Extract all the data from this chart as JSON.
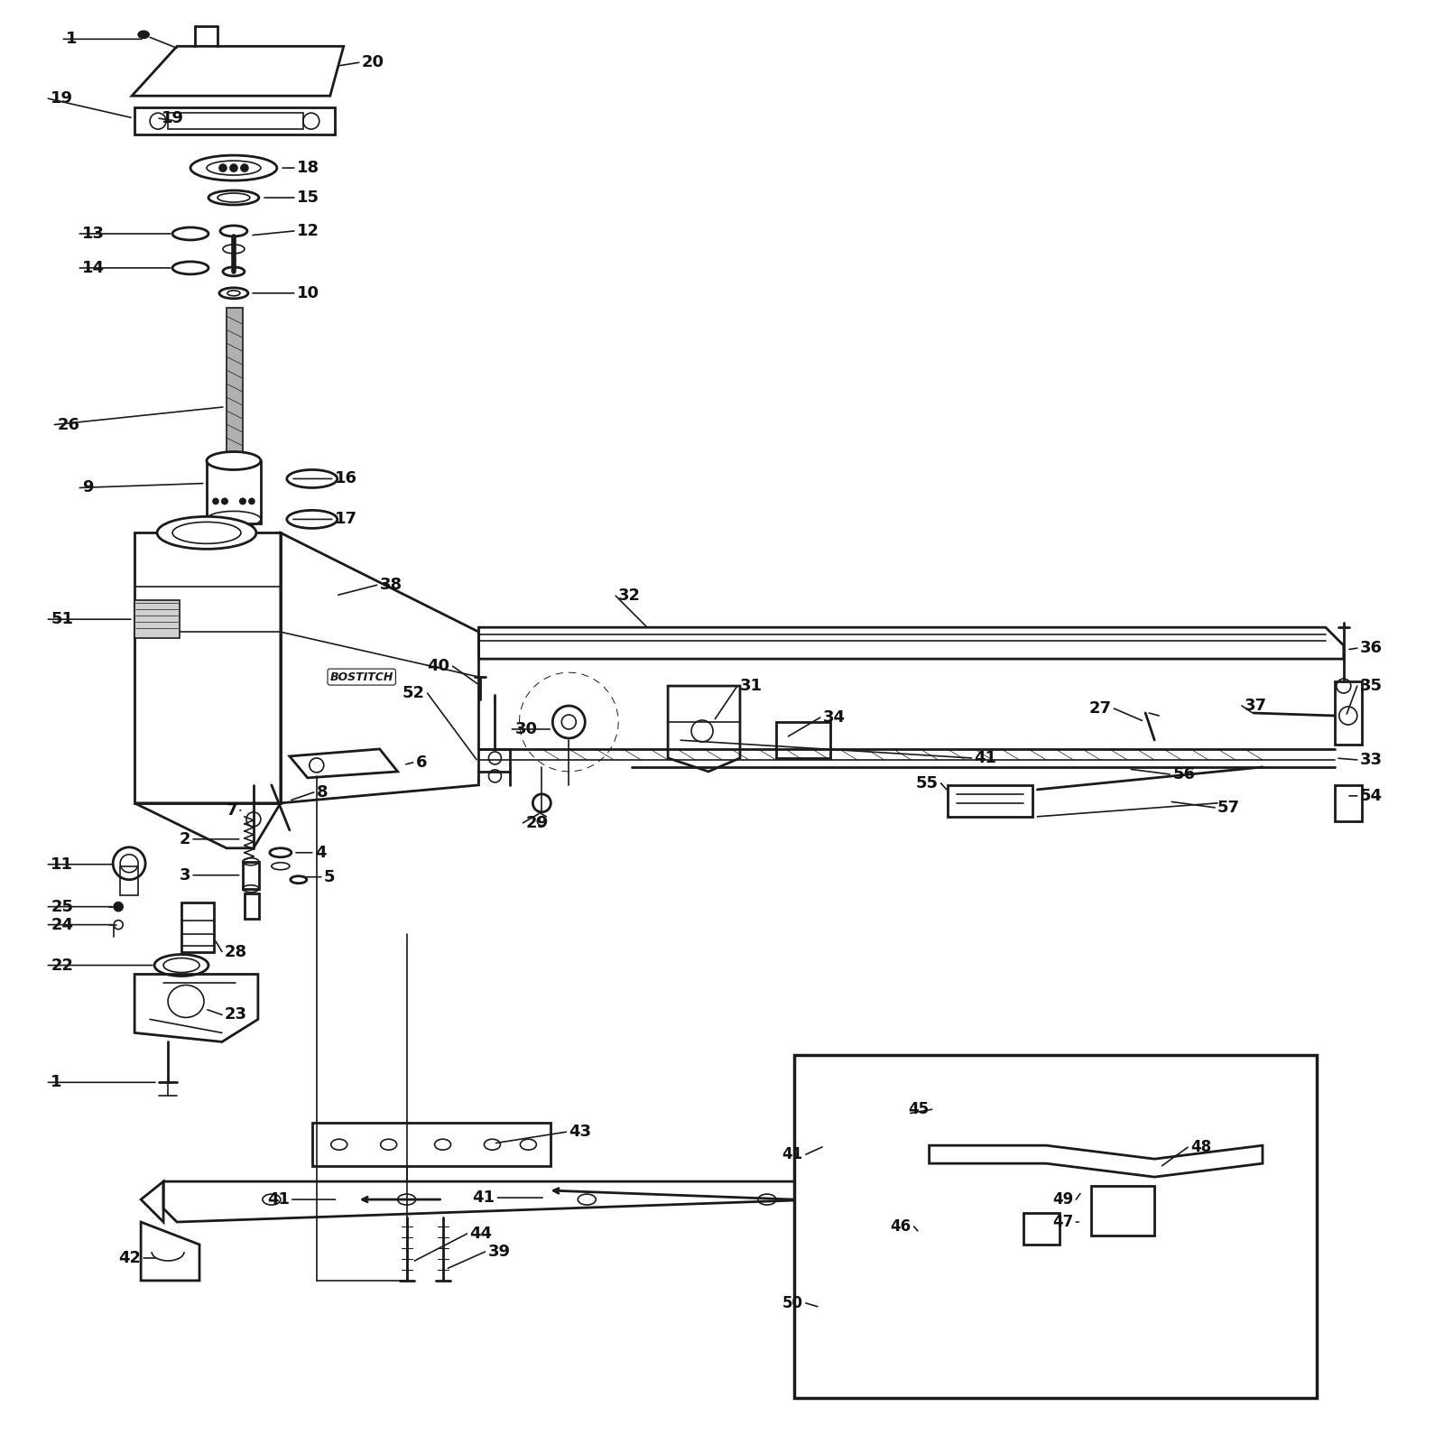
{
  "background_color": "#ffffff",
  "line_color": "#1a1a1a",
  "text_color": "#111111",
  "figsize": [
    16,
    16
  ],
  "dpi": 100,
  "label_fontsize": 13,
  "bold_labels": true
}
